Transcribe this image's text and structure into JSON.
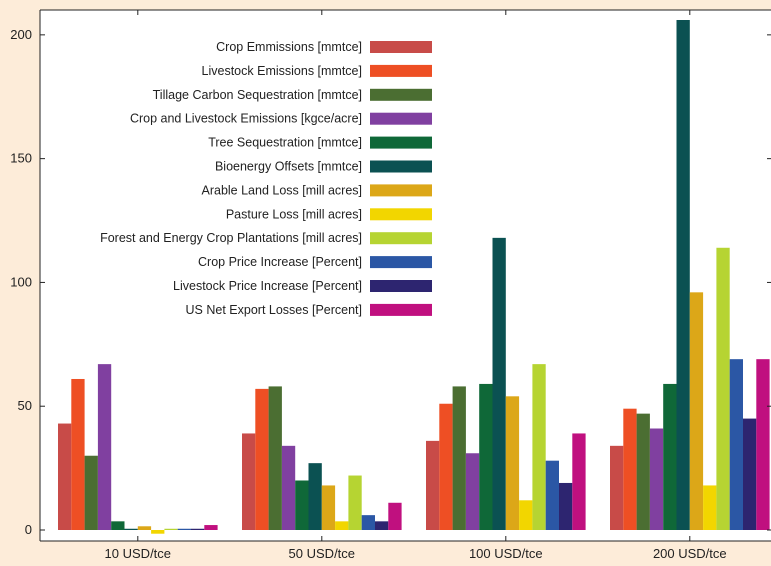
{
  "chart_data": {
    "type": "bar",
    "title": "",
    "xlabel": "",
    "ylabel": "",
    "categories": [
      "10 USD/tce",
      "50 USD/tce",
      "100 USD/tce",
      "200 USD/tce"
    ],
    "ylim": [
      0,
      210
    ],
    "yticks": [
      0,
      50,
      100,
      150,
      200
    ],
    "grid": false,
    "legend_position": "top-left",
    "series": [
      {
        "name": "Crop Emmissions [mmtce]",
        "color": "#c84b48",
        "values": [
          43,
          39,
          36,
          34
        ]
      },
      {
        "name": "Livestock Emissions [mmtce]",
        "color": "#ee4f24",
        "values": [
          61,
          57,
          51,
          49
        ]
      },
      {
        "name": "Tillage Carbon Sequestration [mmtce]",
        "color": "#4b6e32",
        "values": [
          30,
          58,
          58,
          47
        ]
      },
      {
        "name": "Crop and Livestock Emissions [kgce/acre]",
        "color": "#8040a0",
        "values": [
          67,
          34,
          31,
          41
        ]
      },
      {
        "name": "Tree Sequestration [mmtce]",
        "color": "#0f6838",
        "values": [
          3.5,
          20,
          59,
          59
        ]
      },
      {
        "name": "Bioenergy Offsets [mmtce]",
        "color": "#0b5152",
        "values": [
          0.5,
          27,
          118,
          206
        ]
      },
      {
        "name": "Arable Land Loss [mill acres]",
        "color": "#dca718",
        "values": [
          1.5,
          18,
          54,
          96
        ]
      },
      {
        "name": "Pasture Loss [mill acres]",
        "color": "#f2d600",
        "values": [
          -1.5,
          3.5,
          12,
          18
        ]
      },
      {
        "name": "Forest and Energy Crop Plantations [mill acres]",
        "color": "#b6d432",
        "values": [
          0.5,
          22,
          67,
          114
        ]
      },
      {
        "name": "Crop Price Increase [Percent]",
        "color": "#2b57a5",
        "values": [
          0.5,
          6,
          28,
          69
        ]
      },
      {
        "name": "Livestock Price Increase [Percent]",
        "color": "#2d2570",
        "values": [
          0.5,
          3.5,
          19,
          45
        ]
      },
      {
        "name": "US Net Export Losses [Percent]",
        "color": "#c0107f",
        "values": [
          2,
          11,
          39,
          69
        ]
      }
    ]
  }
}
